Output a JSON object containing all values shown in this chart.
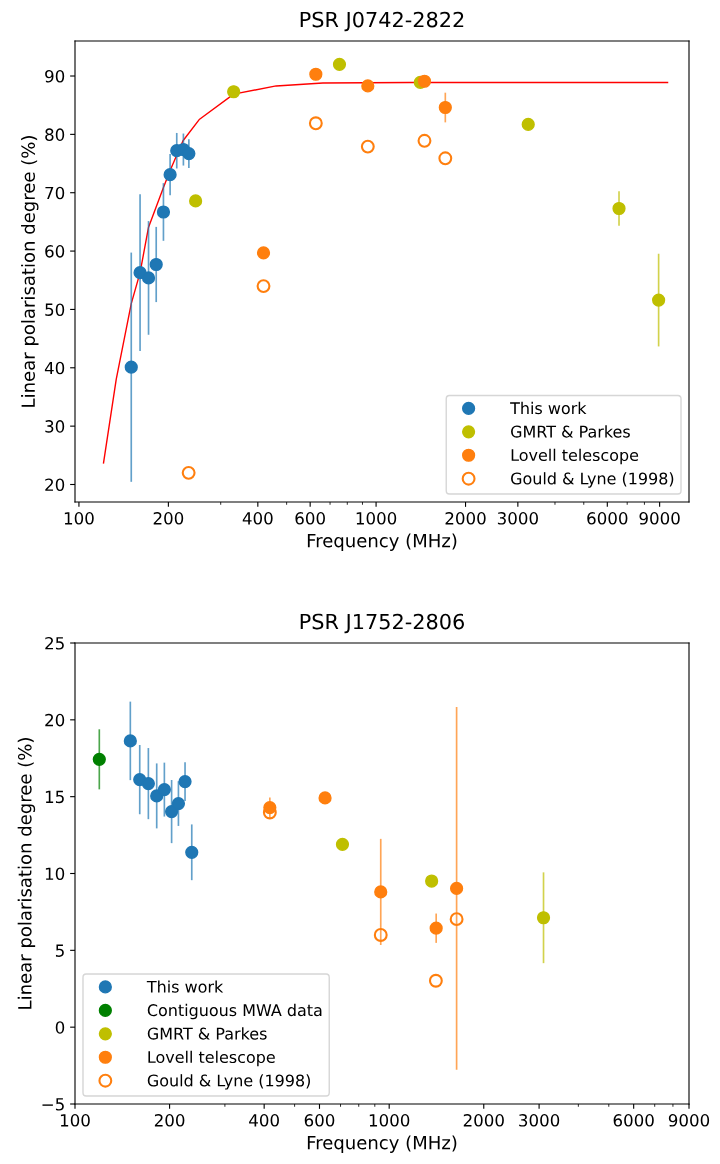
{
  "chart_data": [
    {
      "type": "scatter",
      "title": "PSR J0742-2822",
      "xlabel": "Frequency (MHz)",
      "ylabel": "Linear polarisation degree (%)",
      "log": "x",
      "grid": false,
      "legend": "bottom right",
      "marker": "circle",
      "xlim": [
        97,
        11300
      ],
      "xticks": [
        100,
        200,
        400,
        600,
        1000,
        2000,
        3000,
        6000,
        9000
      ],
      "ylim": [
        17,
        96
      ],
      "yticks": [
        20,
        30,
        40,
        50,
        60,
        70,
        80,
        90
      ],
      "series": [
        {
          "type": "line",
          "color": "#ff0000",
          "marker": "none",
          "x": [
            121,
            133.5,
            150,
            160.6,
            171.5,
            192.5,
            202.7,
            224,
            254.7,
            331.7,
            461,
            662,
            1297,
            9570
          ],
          "values": [
            23.7,
            38.0,
            51.0,
            56.3,
            64.1,
            70.9,
            73.8,
            78.9,
            82.6,
            86.9,
            88.3,
            88.8,
            88.9,
            88.9
          ]
        },
        {
          "name": "This work",
          "color": "#1f77b4",
          "x": [
            150,
            160.6,
            171.5,
            182,
            192.5,
            202.7,
            213.4,
            224.7,
            234.4
          ],
          "values": [
            40.1,
            56.3,
            55.4,
            57.7,
            66.7,
            73.1,
            77.2,
            77.4,
            76.7
          ],
          "errors": [
            19.5,
            13.3,
            9.6,
            6.3,
            4.8,
            3.4,
            2.9,
            2.6,
            2.3
          ]
        },
        {
          "name": "GMRT & Parkes",
          "color": "#bfbf00",
          "x": [
            247,
            331.7,
            753,
            1409,
            3251,
            6570,
            8930
          ],
          "values": [
            68.6,
            87.3,
            92.0,
            88.9,
            81.7,
            67.3,
            51.6
          ],
          "errors": [
            null,
            null,
            null,
            null,
            null,
            2.8,
            7.8
          ]
        },
        {
          "name": "Lovell telescope",
          "color": "#ff7f0e",
          "x": [
            418,
            627,
            938,
            1455,
            1710
          ],
          "values": [
            59.7,
            90.3,
            88.3,
            89.1,
            84.6
          ],
          "errors": [
            null,
            null,
            null,
            null,
            2.4
          ]
        },
        {
          "name": "Gould & Lyne (1998)",
          "color": "#ff7f0e",
          "marker": "circle-open",
          "x": [
            234,
            418,
            627,
            938,
            1455,
            1710
          ],
          "values": [
            22.0,
            54.0,
            81.9,
            77.9,
            78.9,
            75.9
          ]
        }
      ]
    },
    {
      "type": "scatter",
      "title": "PSR J1752-2806",
      "xlabel": "Frequency (MHz)",
      "ylabel": "Linear polarisation degree (%)",
      "log": "x",
      "grid": false,
      "legend": "bottom left",
      "marker": "circle",
      "xlim": [
        100,
        9000
      ],
      "xticks": [
        100,
        200,
        400,
        600,
        1000,
        2000,
        3000,
        6000,
        9000
      ],
      "ylim": [
        -5,
        25
      ],
      "yticks": [
        {
          "value": -5,
          "label": "−5"
        },
        0,
        5,
        10,
        15,
        20,
        25
      ],
      "series": [
        {
          "name": "This work",
          "color": "#1f77b4",
          "x": [
            150,
            160.7,
            171.2,
            182,
            192.5,
            203,
            213.4,
            224,
            235.3
          ],
          "values": [
            18.63,
            16.11,
            15.85,
            15.05,
            15.46,
            14.03,
            14.55,
            15.98,
            11.38
          ],
          "errors": [
            2.5,
            2.2,
            2.26,
            2.06,
            1.7,
            2.0,
            1.4,
            1.2,
            1.76
          ]
        },
        {
          "name": "Contiguous MWA data",
          "color": "#008000",
          "x": [
            119.5
          ],
          "values": [
            17.43
          ],
          "errors": [
            1.9
          ]
        },
        {
          "name": "GMRT & Parkes",
          "color": "#bfbf00",
          "x": [
            710,
            1365,
            3099
          ],
          "values": [
            11.9,
            9.51,
            7.12
          ],
          "errors": [
            null,
            null,
            2.9
          ]
        },
        {
          "name": "Lovell telescope",
          "color": "#ff7f0e",
          "x": [
            417,
            625,
            940,
            1411,
            1639
          ],
          "values": [
            14.29,
            14.92,
            8.8,
            6.44,
            9.03
          ],
          "errors": [
            0.6,
            null,
            3.4,
            0.9,
            11.75
          ]
        },
        {
          "name": "Gould & Lyne (1998)",
          "color": "#ff7f0e",
          "marker": "circle-open",
          "x": [
            417,
            940,
            1408,
            1639
          ],
          "values": [
            13.97,
            6.0,
            3.02,
            7.03
          ]
        }
      ]
    }
  ]
}
